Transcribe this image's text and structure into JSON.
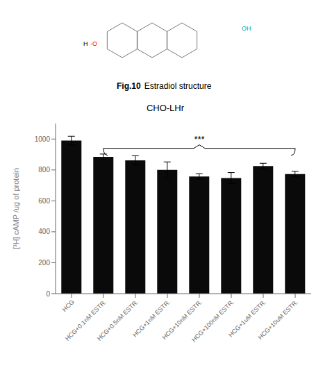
{
  "chart_data": {
    "type": "bar",
    "title": "CHO-LHr",
    "annotations": [
      {
        "text": "Fig.10"
      },
      {
        "text": "Estradiol structure"
      },
      {
        "text": "H",
        "color": "#000000"
      },
      {
        "text": "-O",
        "color": "#ff0000"
      },
      {
        "text": "OH",
        "color": "#00aaaa"
      },
      {
        "text": "***",
        "x_from": 1,
        "x_to": 7,
        "y": 940
      }
    ],
    "categories": [
      "HCG",
      "HCG+0.1nM ESTR.",
      "HCG+0.5nM ESTR.",
      "HCG+1nM ESTR.",
      "HCG+10nM ESTR.",
      "HCG+100nM ESTR.",
      "HCG+1uM ESTR.",
      "HCG+10uM ESTR."
    ],
    "values": [
      990,
      885,
      862,
      800,
      758,
      748,
      825,
      773
    ],
    "errors": [
      28,
      18,
      30,
      52,
      18,
      35,
      18,
      18
    ],
    "color": "#0a0a0a",
    "ylabel": "[³H] cAMP /ug of protein",
    "ylim": [
      0,
      1100
    ],
    "yticks": [
      0,
      200,
      400,
      600,
      800,
      1000
    ]
  }
}
